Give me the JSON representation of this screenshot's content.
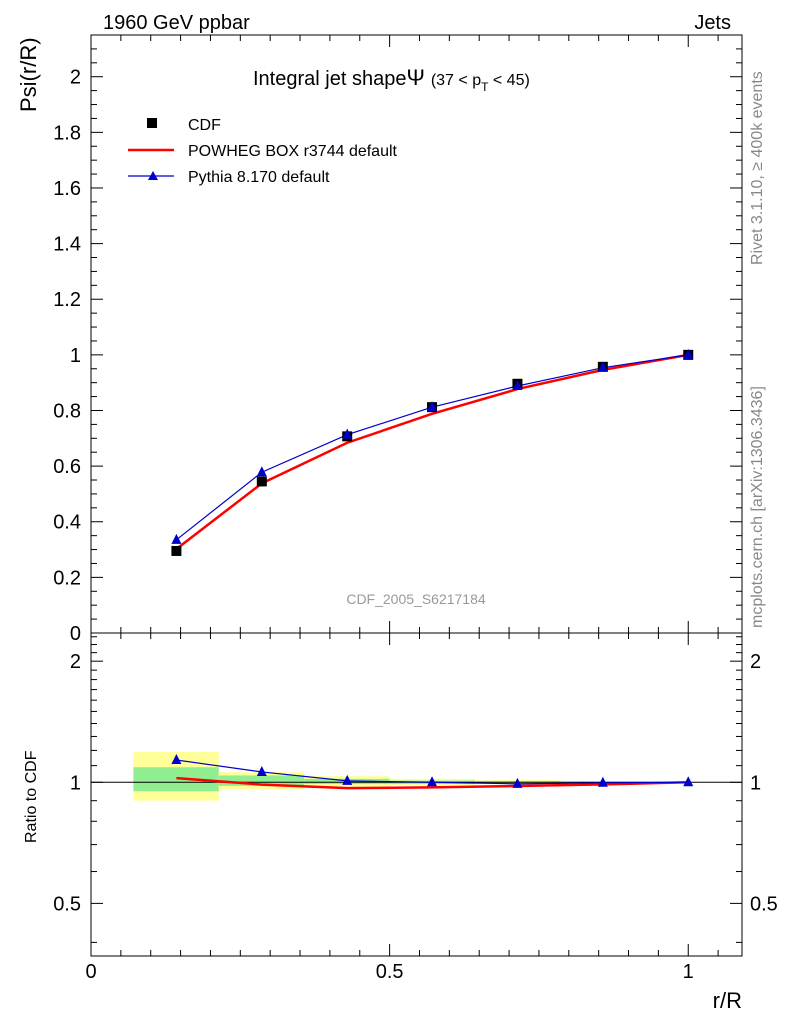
{
  "header": {
    "energy_label": "1960 GeV ppbar",
    "process_label": "Jets"
  },
  "side_text": {
    "rivet": "Rivet 3.1.10, ≥ 400k events",
    "mcplots": "mcplots.cern.ch [arXiv:1306.3436]"
  },
  "chart_data": [
    {
      "type": "line",
      "panel": "main",
      "title": "Integral jet shape",
      "title_symbol": "Ψ",
      "title_range": "(37 < p",
      "title_sub": "T",
      "title_range_end": " < 45)",
      "analysis_label": "CDF_2005_S6217184",
      "xlabel": "r/R",
      "ylabel": "Psi(r/R)",
      "xlim": [
        0,
        1.09
      ],
      "ylim": [
        0,
        2.15
      ],
      "yticks": [
        0,
        0.2,
        0.4,
        0.6,
        0.8,
        1,
        1.2,
        1.4,
        1.6,
        1.8,
        2
      ],
      "ytick_labels": [
        "0",
        "0.2",
        "0.4",
        "0.6",
        "0.8",
        "1",
        "1.2",
        "1.4",
        "1.6",
        "1.8",
        "2"
      ],
      "legend_position": "top-left",
      "x": [
        0.143,
        0.286,
        0.429,
        0.571,
        0.714,
        0.857,
        1.0
      ],
      "series": [
        {
          "name": "CDF",
          "style": "square-markers",
          "color": "#000000",
          "values": [
            0.295,
            0.545,
            0.707,
            0.812,
            0.896,
            0.957,
            1.0
          ]
        },
        {
          "name": "POWHEG BOX r3744 default",
          "style": "line",
          "color": "#ff0000",
          "values": [
            0.302,
            0.538,
            0.684,
            0.788,
            0.877,
            0.946,
            1.0
          ]
        },
        {
          "name": "Pythia 8.170 default",
          "style": "line-triangles",
          "color": "#0000cc",
          "values": [
            0.335,
            0.578,
            0.713,
            0.812,
            0.888,
            0.954,
            1.0
          ]
        }
      ]
    },
    {
      "type": "line",
      "panel": "ratio",
      "xlabel": "r/R",
      "ylabel": "Ratio to CDF",
      "xlim": [
        0,
        1.09
      ],
      "ylim": [
        0.37,
        2.35
      ],
      "ylog": true,
      "xticks": [
        0,
        0.5,
        1
      ],
      "xtick_labels": [
        "0",
        "0.5",
        "1"
      ],
      "yticks": [
        0.5,
        1,
        2
      ],
      "ytick_labels": [
        "0.5",
        "1",
        "2"
      ],
      "error_bands": [
        {
          "x_low": 0.071,
          "x_high": 0.214,
          "inner": [
            0.95,
            1.09
          ],
          "outer": [
            0.9,
            1.19
          ]
        },
        {
          "x_low": 0.214,
          "x_high": 0.357,
          "inner": [
            0.98,
            1.04
          ],
          "outer": [
            0.96,
            1.06
          ]
        },
        {
          "x_low": 0.357,
          "x_high": 0.5,
          "inner": [
            0.99,
            1.02
          ],
          "outer": [
            0.975,
            1.035
          ]
        },
        {
          "x_low": 0.5,
          "x_high": 0.643,
          "inner": [
            0.99,
            1.01
          ],
          "outer": [
            0.985,
            1.02
          ]
        },
        {
          "x_low": 0.643,
          "x_high": 0.786,
          "inner": [
            0.994,
            1.006
          ],
          "outer": [
            0.99,
            1.012
          ]
        },
        {
          "x_low": 0.786,
          "x_high": 0.929,
          "inner": [
            0.997,
            1.003
          ],
          "outer": [
            0.995,
            1.006
          ]
        }
      ],
      "band_colors": {
        "inner": "#90ee90",
        "outer": "#ffff99"
      },
      "x": [
        0.143,
        0.286,
        0.429,
        0.571,
        0.714,
        0.857,
        1.0
      ],
      "series": [
        {
          "name": "POWHEG BOX r3744 default",
          "color": "#ff0000",
          "values": [
            1.024,
            0.987,
            0.967,
            0.971,
            0.979,
            0.988,
            1.0
          ]
        },
        {
          "name": "Pythia 8.170 default",
          "color": "#0000cc",
          "values": [
            1.136,
            1.061,
            1.008,
            1.0,
            0.991,
            0.997,
            1.0
          ]
        }
      ]
    }
  ]
}
